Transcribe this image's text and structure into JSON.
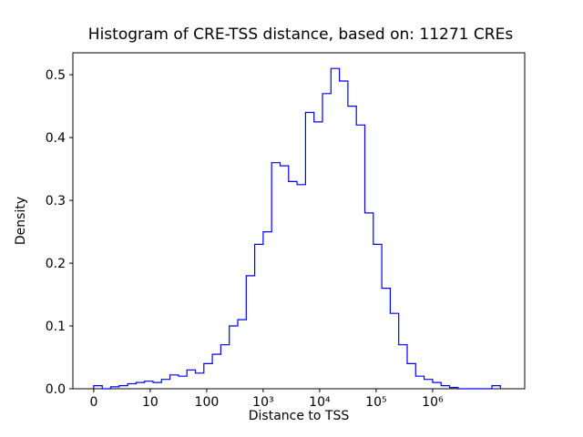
{
  "figure": {
    "background": "#ffffff",
    "line_color": "#0000ff",
    "axis_color": "#000000"
  },
  "chart_data": {
    "type": "bar",
    "subtype": "step-histogram",
    "title": "Histogram of CRE-TSS distance, based on: 11271 CREs",
    "xlabel": "Distance to TSS",
    "ylabel": "Density",
    "x_scale": "log-like (positions in decades of distance+1)",
    "grid": false,
    "legend": "none",
    "x_ticks": [
      {
        "pos": 0,
        "label": "0"
      },
      {
        "pos": 1,
        "label": "10"
      },
      {
        "pos": 2,
        "label": "100"
      },
      {
        "pos": 3,
        "label": "10³"
      },
      {
        "pos": 4,
        "label": "10⁴"
      },
      {
        "pos": 5,
        "label": "10⁵"
      },
      {
        "pos": 6,
        "label": "10⁶"
      }
    ],
    "y_ticks": [
      0.0,
      0.1,
      0.2,
      0.3,
      0.4,
      0.5
    ],
    "xlim": [
      -0.37,
      7.63
    ],
    "ylim": [
      0,
      0.535
    ],
    "bin_start": 0.0,
    "bin_width": 0.15,
    "densities": [
      0.005,
      0.0,
      0.003,
      0.005,
      0.008,
      0.01,
      0.012,
      0.01,
      0.015,
      0.022,
      0.02,
      0.03,
      0.025,
      0.04,
      0.055,
      0.07,
      0.1,
      0.11,
      0.18,
      0.23,
      0.25,
      0.36,
      0.355,
      0.33,
      0.325,
      0.44,
      0.425,
      0.47,
      0.51,
      0.49,
      0.45,
      0.42,
      0.28,
      0.23,
      0.16,
      0.12,
      0.07,
      0.04,
      0.02,
      0.015,
      0.01,
      0.005,
      0.002,
      0.0,
      0.0,
      0.0,
      0.0,
      0.005
    ]
  }
}
